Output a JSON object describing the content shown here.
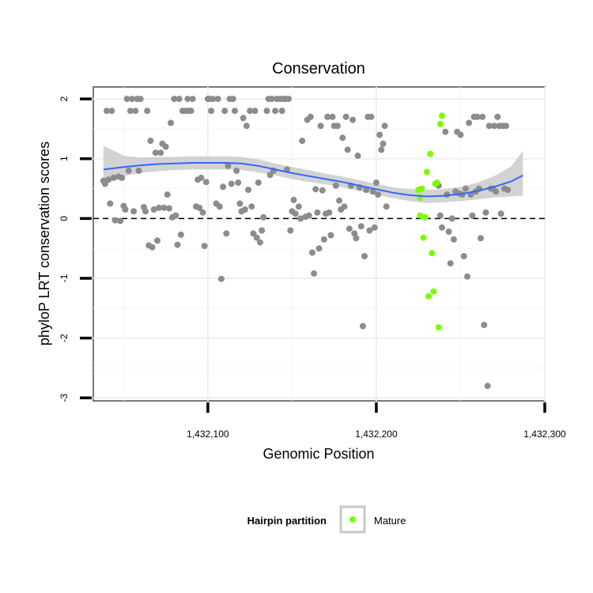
{
  "chart_data": {
    "type": "scatter",
    "title": "Conservation",
    "xlabel": "Genomic Position",
    "ylabel": "phyloP LRT conservation scores",
    "xlim": [
      1432032,
      1432300
    ],
    "ylim": [
      -3.05,
      2.2
    ],
    "x_ticks": [
      1432100,
      1432200,
      1432300
    ],
    "x_tick_labels": [
      "1,432,100",
      "1,432,200",
      "1,432,300"
    ],
    "y_ticks": [
      -3,
      -2,
      -1,
      0,
      1,
      2
    ],
    "y_tick_labels": [
      "-3",
      "-2",
      "-1",
      "0",
      "1",
      "2"
    ],
    "grid": true,
    "reference_line": {
      "y": 0,
      "style": "dashed"
    },
    "legend": {
      "title": "Hairpin partition",
      "placement": "bottom",
      "entries": [
        "Mature"
      ]
    },
    "colors": {
      "other": "#8c8c8c",
      "mature": "#7cfc00",
      "smooth": "#3366ff",
      "band": "#c8c8c8"
    },
    "series": [
      {
        "name": "",
        "color": "#8c8c8c",
        "points": [
          [
            1432038,
            0.63
          ],
          [
            1432039,
            0.58
          ],
          [
            1432040,
            1.8
          ],
          [
            1432041,
            0.65
          ],
          [
            1432042,
            0.25
          ],
          [
            1432043,
            1.8
          ],
          [
            1432044,
            0.68
          ],
          [
            1432045,
            -0.03
          ],
          [
            1432047,
            0.7
          ],
          [
            1432048,
            -0.04
          ],
          [
            1432049,
            0.68
          ],
          [
            1432050,
            0.21
          ],
          [
            1432051,
            0.15
          ],
          [
            1432052,
            2.0
          ],
          [
            1432053,
            0.8
          ],
          [
            1432054,
            1.8
          ],
          [
            1432055,
            2.0
          ],
          [
            1432056,
            0.12
          ],
          [
            1432057,
            1.8
          ],
          [
            1432058,
            2.0
          ],
          [
            1432059,
            0.8
          ],
          [
            1432060,
            2.0
          ],
          [
            1432062,
            0.19
          ],
          [
            1432063,
            0.12
          ],
          [
            1432064,
            1.8
          ],
          [
            1432065,
            -0.45
          ],
          [
            1432066,
            1.3
          ],
          [
            1432067,
            -0.48
          ],
          [
            1432068,
            0.15
          ],
          [
            1432069,
            1.1
          ],
          [
            1432070,
            -0.37
          ],
          [
            1432071,
            0.18
          ],
          [
            1432072,
            1.1
          ],
          [
            1432073,
            1.25
          ],
          [
            1432074,
            0.18
          ],
          [
            1432075,
            1.2
          ],
          [
            1432076,
            0.4
          ],
          [
            1432077,
            0.17
          ],
          [
            1432078,
            1.6
          ],
          [
            1432079,
            0.02
          ],
          [
            1432080,
            2.0
          ],
          [
            1432081,
            0.05
          ],
          [
            1432082,
            -0.44
          ],
          [
            1432083,
            2.0
          ],
          [
            1432084,
            -0.27
          ],
          [
            1432085,
            1.8
          ],
          [
            1432087,
            1.8
          ],
          [
            1432088,
            2.0
          ],
          [
            1432089,
            1.8
          ],
          [
            1432090,
            1.8
          ],
          [
            1432091,
            2.0
          ],
          [
            1432093,
            0.2
          ],
          [
            1432094,
            0.65
          ],
          [
            1432095,
            0.18
          ],
          [
            1432096,
            0.68
          ],
          [
            1432097,
            0.1
          ],
          [
            1432098,
            -0.46
          ],
          [
            1432099,
            0.61
          ],
          [
            1432100,
            2.0
          ],
          [
            1432101,
            2.0
          ],
          [
            1432102,
            1.8
          ],
          [
            1432103,
            2.0
          ],
          [
            1432105,
            0.25
          ],
          [
            1432106,
            2.0
          ],
          [
            1432107,
            0.2
          ],
          [
            1432108,
            -1.01
          ],
          [
            1432109,
            0.53
          ],
          [
            1432110,
            1.8
          ],
          [
            1432111,
            -0.25
          ],
          [
            1432112,
            0.88
          ],
          [
            1432113,
            2.0
          ],
          [
            1432114,
            0.58
          ],
          [
            1432115,
            2.0
          ],
          [
            1432116,
            1.8
          ],
          [
            1432117,
            0.8
          ],
          [
            1432118,
            0.6
          ],
          [
            1432119,
            0.25
          ],
          [
            1432120,
            0.12
          ],
          [
            1432121,
            1.68
          ],
          [
            1432122,
            0.15
          ],
          [
            1432123,
            1.55
          ],
          [
            1432124,
            0.48
          ],
          [
            1432125,
            1.8
          ],
          [
            1432126,
            0.2
          ],
          [
            1432127,
            -0.25
          ],
          [
            1432128,
            1.8
          ],
          [
            1432129,
            -0.32
          ],
          [
            1432130,
            0.6
          ],
          [
            1432131,
            -0.4
          ],
          [
            1432132,
            -0.2
          ],
          [
            1432133,
            0.02
          ],
          [
            1432135,
            1.8
          ],
          [
            1432136,
            2.0
          ],
          [
            1432137,
            0.73
          ],
          [
            1432138,
            2.0
          ],
          [
            1432139,
            0.8
          ],
          [
            1432140,
            1.8
          ],
          [
            1432141,
            2.0
          ],
          [
            1432143,
            2.0
          ],
          [
            1432144,
            1.8
          ],
          [
            1432145,
            2.0
          ],
          [
            1432146,
            2.0
          ],
          [
            1432147,
            0.82
          ],
          [
            1432148,
            2.0
          ],
          [
            1432149,
            -0.2
          ],
          [
            1432150,
            0.12
          ],
          [
            1432151,
            0.31
          ],
          [
            1432152,
            0.08
          ],
          [
            1432154,
            0.2
          ],
          [
            1432155,
            0.0
          ],
          [
            1432156,
            1.3
          ],
          [
            1432158,
            0.03
          ],
          [
            1432159,
            1.65
          ],
          [
            1432160,
            0.05
          ],
          [
            1432161,
            1.7
          ],
          [
            1432162,
            -0.57
          ],
          [
            1432163,
            -0.92
          ],
          [
            1432164,
            0.49
          ],
          [
            1432165,
            0.1
          ],
          [
            1432166,
            -0.5
          ],
          [
            1432167,
            1.55
          ],
          [
            1432168,
            0.47
          ],
          [
            1432169,
            -0.35
          ],
          [
            1432170,
            0.08
          ],
          [
            1432171,
            1.7
          ],
          [
            1432172,
            0.1
          ],
          [
            1432173,
            -0.28
          ],
          [
            1432174,
            1.7
          ],
          [
            1432175,
            1.55
          ],
          [
            1432176,
            0.55
          ],
          [
            1432177,
            1.55
          ],
          [
            1432178,
            0.3
          ],
          [
            1432179,
            0.15
          ],
          [
            1432180,
            1.35
          ],
          [
            1432181,
            0.2
          ],
          [
            1432182,
            1.7
          ],
          [
            1432183,
            1.15
          ],
          [
            1432184,
            -0.17
          ],
          [
            1432185,
            0.55
          ],
          [
            1432186,
            1.65
          ],
          [
            1432187,
            -0.25
          ],
          [
            1432188,
            -0.33
          ],
          [
            1432189,
            1.05
          ],
          [
            1432190,
            0.52
          ],
          [
            1432191,
            -0.13
          ],
          [
            1432192,
            -1.8
          ],
          [
            1432193,
            -0.63
          ],
          [
            1432194,
            0.48
          ],
          [
            1432195,
            1.7
          ],
          [
            1432196,
            -0.2
          ],
          [
            1432197,
            1.7
          ],
          [
            1432198,
            0.45
          ],
          [
            1432199,
            -0.15
          ],
          [
            1432200,
            0.6
          ],
          [
            1432201,
            0.4
          ],
          [
            1432202,
            1.4
          ],
          [
            1432203,
            1.15
          ],
          [
            1432204,
            1.25
          ],
          [
            1432205,
            1.55
          ],
          [
            1432206,
            0.2
          ],
          [
            1432237,
            0.55
          ],
          [
            1432238,
            0.05
          ],
          [
            1432239,
            -0.15
          ],
          [
            1432241,
            1.45
          ],
          [
            1432242,
            0.4
          ],
          [
            1432243,
            -0.22
          ],
          [
            1432244,
            -0.75
          ],
          [
            1432245,
            0.0
          ],
          [
            1432246,
            -0.35
          ],
          [
            1432247,
            0.45
          ],
          [
            1432248,
            1.45
          ],
          [
            1432249,
            0.42
          ],
          [
            1432250,
            1.4
          ],
          [
            1432251,
            0.4
          ],
          [
            1432252,
            -0.63
          ],
          [
            1432253,
            0.5
          ],
          [
            1432254,
            -0.97
          ],
          [
            1432255,
            1.6
          ],
          [
            1432256,
            0.4
          ],
          [
            1432257,
            0.05
          ],
          [
            1432258,
            1.7
          ],
          [
            1432259,
            0.45
          ],
          [
            1432260,
            1.7
          ],
          [
            1432261,
            0.5
          ],
          [
            1432262,
            -0.33
          ],
          [
            1432263,
            1.7
          ],
          [
            1432264,
            -1.78
          ],
          [
            1432265,
            0.1
          ],
          [
            1432266,
            -2.8
          ],
          [
            1432267,
            1.55
          ],
          [
            1432268,
            0.5
          ],
          [
            1432269,
            0.5
          ],
          [
            1432270,
            1.55
          ],
          [
            1432271,
            0.45
          ],
          [
            1432272,
            1.7
          ],
          [
            1432273,
            1.55
          ],
          [
            1432274,
            0.08
          ],
          [
            1432275,
            1.55
          ],
          [
            1432276,
            0.5
          ],
          [
            1432277,
            1.55
          ],
          [
            1432278,
            0.48
          ]
        ]
      },
      {
        "name": "Mature",
        "color": "#7cfc00",
        "points": [
          [
            1432225,
            0.48
          ],
          [
            1432226,
            0.35
          ],
          [
            1432226,
            0.05
          ],
          [
            1432227,
            0.5
          ],
          [
            1432228,
            -0.32
          ],
          [
            1432229,
            0.02
          ],
          [
            1432230,
            0.78
          ],
          [
            1432231,
            -1.3
          ],
          [
            1432232,
            1.08
          ],
          [
            1432233,
            -0.58
          ],
          [
            1432234,
            -1.22
          ],
          [
            1432235,
            0.58
          ],
          [
            1432236,
            0.6
          ],
          [
            1432237,
            -1.82
          ],
          [
            1432238,
            1.58
          ],
          [
            1432239,
            1.72
          ]
        ]
      }
    ],
    "smooth_curve": {
      "x": [
        1432038,
        1432050,
        1432060,
        1432070,
        1432080,
        1432090,
        1432100,
        1432110,
        1432120,
        1432130,
        1432140,
        1432150,
        1432160,
        1432170,
        1432180,
        1432190,
        1432200,
        1432210,
        1432220,
        1432230,
        1432240,
        1432250,
        1432260,
        1432270,
        1432280,
        1432287
      ],
      "y": [
        0.82,
        0.86,
        0.89,
        0.91,
        0.92,
        0.93,
        0.93,
        0.93,
        0.92,
        0.88,
        0.82,
        0.76,
        0.71,
        0.66,
        0.61,
        0.55,
        0.49,
        0.43,
        0.39,
        0.37,
        0.38,
        0.41,
        0.46,
        0.53,
        0.62,
        0.72
      ],
      "lower": [
        0.58,
        0.71,
        0.76,
        0.79,
        0.81,
        0.82,
        0.82,
        0.82,
        0.81,
        0.77,
        0.72,
        0.66,
        0.61,
        0.57,
        0.52,
        0.46,
        0.4,
        0.34,
        0.29,
        0.26,
        0.27,
        0.29,
        0.32,
        0.35,
        0.37,
        0.38
      ],
      "upper": [
        1.22,
        1.05,
        1.02,
        1.03,
        1.03,
        1.04,
        1.04,
        1.04,
        1.03,
        0.99,
        0.92,
        0.86,
        0.81,
        0.75,
        0.7,
        0.64,
        0.58,
        0.52,
        0.49,
        0.48,
        0.49,
        0.53,
        0.6,
        0.71,
        0.87,
        1.13
      ]
    }
  }
}
